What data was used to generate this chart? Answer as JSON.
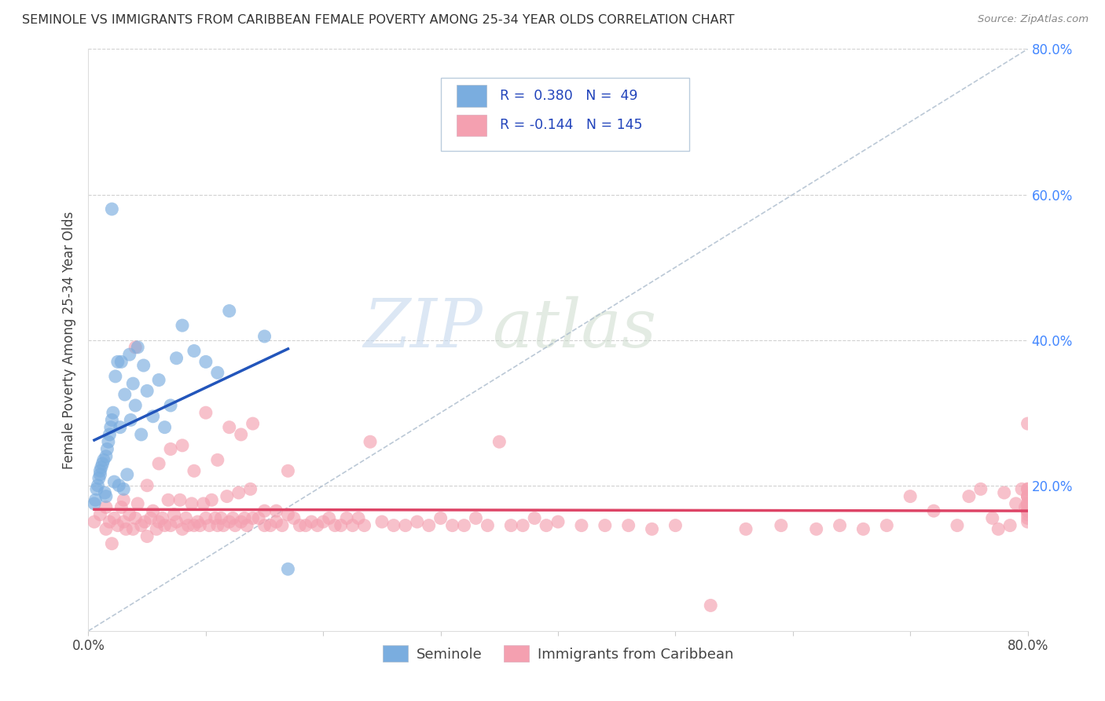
{
  "title": "SEMINOLE VS IMMIGRANTS FROM CARIBBEAN FEMALE POVERTY AMONG 25-34 YEAR OLDS CORRELATION CHART",
  "source": "Source: ZipAtlas.com",
  "ylabel": "Female Poverty Among 25-34 Year Olds",
  "xlim": [
    0.0,
    0.8
  ],
  "ylim": [
    0.0,
    0.8
  ],
  "seminole_color": "#7aaddf",
  "caribbean_color": "#f4a0b0",
  "seminole_line_color": "#2255bb",
  "caribbean_line_color": "#dd4466",
  "seminole_R": 0.38,
  "seminole_N": 49,
  "caribbean_R": -0.144,
  "caribbean_N": 145,
  "legend_label_1": "Seminole",
  "legend_label_2": "Immigrants from Caribbean",
  "watermark_zip": "ZIP",
  "watermark_atlas": "atlas",
  "right_tick_color": "#4488ff",
  "seminole_x": [
    0.005,
    0.006,
    0.007,
    0.008,
    0.009,
    0.01,
    0.01,
    0.011,
    0.012,
    0.013,
    0.014,
    0.015,
    0.015,
    0.016,
    0.017,
    0.018,
    0.019,
    0.02,
    0.02,
    0.021,
    0.022,
    0.023,
    0.025,
    0.026,
    0.027,
    0.028,
    0.03,
    0.031,
    0.033,
    0.035,
    0.036,
    0.038,
    0.04,
    0.042,
    0.045,
    0.047,
    0.05,
    0.055,
    0.06,
    0.065,
    0.07,
    0.075,
    0.08,
    0.09,
    0.1,
    0.11,
    0.12,
    0.15,
    0.17
  ],
  "seminole_y": [
    0.175,
    0.18,
    0.195,
    0.2,
    0.21,
    0.215,
    0.22,
    0.225,
    0.23,
    0.235,
    0.19,
    0.185,
    0.24,
    0.25,
    0.26,
    0.27,
    0.28,
    0.29,
    0.58,
    0.3,
    0.205,
    0.35,
    0.37,
    0.2,
    0.28,
    0.37,
    0.195,
    0.325,
    0.215,
    0.38,
    0.29,
    0.34,
    0.31,
    0.39,
    0.27,
    0.365,
    0.33,
    0.295,
    0.345,
    0.28,
    0.31,
    0.375,
    0.42,
    0.385,
    0.37,
    0.355,
    0.44,
    0.405,
    0.085
  ],
  "caribbean_x": [
    0.005,
    0.01,
    0.015,
    0.015,
    0.018,
    0.02,
    0.022,
    0.025,
    0.028,
    0.03,
    0.03,
    0.032,
    0.035,
    0.038,
    0.04,
    0.04,
    0.042,
    0.045,
    0.048,
    0.05,
    0.05,
    0.053,
    0.055,
    0.058,
    0.06,
    0.06,
    0.063,
    0.065,
    0.068,
    0.07,
    0.07,
    0.073,
    0.075,
    0.078,
    0.08,
    0.08,
    0.083,
    0.085,
    0.088,
    0.09,
    0.09,
    0.093,
    0.095,
    0.098,
    0.1,
    0.1,
    0.103,
    0.105,
    0.108,
    0.11,
    0.11,
    0.113,
    0.115,
    0.118,
    0.12,
    0.12,
    0.123,
    0.125,
    0.128,
    0.13,
    0.13,
    0.133,
    0.135,
    0.138,
    0.14,
    0.14,
    0.145,
    0.15,
    0.15,
    0.155,
    0.16,
    0.16,
    0.165,
    0.17,
    0.17,
    0.175,
    0.18,
    0.185,
    0.19,
    0.195,
    0.2,
    0.205,
    0.21,
    0.215,
    0.22,
    0.225,
    0.23,
    0.235,
    0.24,
    0.25,
    0.26,
    0.27,
    0.28,
    0.29,
    0.3,
    0.31,
    0.32,
    0.33,
    0.34,
    0.35,
    0.36,
    0.37,
    0.38,
    0.39,
    0.4,
    0.42,
    0.44,
    0.46,
    0.48,
    0.5,
    0.53,
    0.56,
    0.59,
    0.62,
    0.64,
    0.66,
    0.68,
    0.7,
    0.72,
    0.74,
    0.75,
    0.76,
    0.77,
    0.775,
    0.78,
    0.785,
    0.79,
    0.795,
    0.798,
    0.8,
    0.8,
    0.8,
    0.8,
    0.8,
    0.8,
    0.8,
    0.8,
    0.8,
    0.8,
    0.8,
    0.8,
    0.8,
    0.8,
    0.8,
    0.8
  ],
  "caribbean_y": [
    0.15,
    0.16,
    0.14,
    0.17,
    0.15,
    0.12,
    0.155,
    0.145,
    0.17,
    0.15,
    0.18,
    0.14,
    0.16,
    0.14,
    0.155,
    0.39,
    0.175,
    0.145,
    0.15,
    0.13,
    0.2,
    0.155,
    0.165,
    0.14,
    0.15,
    0.23,
    0.155,
    0.145,
    0.18,
    0.145,
    0.25,
    0.16,
    0.15,
    0.18,
    0.14,
    0.255,
    0.155,
    0.145,
    0.175,
    0.145,
    0.22,
    0.15,
    0.145,
    0.175,
    0.155,
    0.3,
    0.145,
    0.18,
    0.155,
    0.145,
    0.235,
    0.155,
    0.145,
    0.185,
    0.15,
    0.28,
    0.155,
    0.145,
    0.19,
    0.15,
    0.27,
    0.155,
    0.145,
    0.195,
    0.155,
    0.285,
    0.155,
    0.145,
    0.165,
    0.145,
    0.15,
    0.165,
    0.145,
    0.16,
    0.22,
    0.155,
    0.145,
    0.145,
    0.15,
    0.145,
    0.15,
    0.155,
    0.145,
    0.145,
    0.155,
    0.145,
    0.155,
    0.145,
    0.26,
    0.15,
    0.145,
    0.145,
    0.15,
    0.145,
    0.155,
    0.145,
    0.145,
    0.155,
    0.145,
    0.26,
    0.145,
    0.145,
    0.155,
    0.145,
    0.15,
    0.145,
    0.145,
    0.145,
    0.14,
    0.145,
    0.035,
    0.14,
    0.145,
    0.14,
    0.145,
    0.14,
    0.145,
    0.185,
    0.165,
    0.145,
    0.185,
    0.195,
    0.155,
    0.14,
    0.19,
    0.145,
    0.175,
    0.195,
    0.17,
    0.185,
    0.155,
    0.165,
    0.175,
    0.185,
    0.165,
    0.195,
    0.165,
    0.285,
    0.17,
    0.185,
    0.165,
    0.175,
    0.16,
    0.195,
    0.15
  ]
}
